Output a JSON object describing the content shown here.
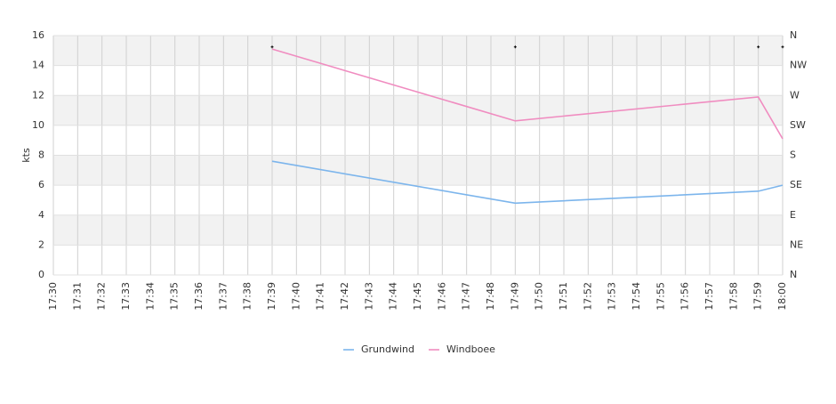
{
  "chart_data": {
    "type": "line",
    "y_label": "kts",
    "categories": [
      "17:30",
      "17:31",
      "17:32",
      "17:33",
      "17:34",
      "17:35",
      "17:36",
      "17:37",
      "17:38",
      "17:39",
      "17:40",
      "17:41",
      "17:42",
      "17:43",
      "17:44",
      "17:45",
      "17:46",
      "17:47",
      "17:48",
      "17:49",
      "17:50",
      "17:51",
      "17:52",
      "17:53",
      "17:54",
      "17:55",
      "17:56",
      "17:57",
      "17:58",
      "17:59",
      "18:00"
    ],
    "series": [
      {
        "name": "Grundwind",
        "color": "#7cb5ec",
        "x": [
          "17:39",
          "17:49",
          "17:59",
          "18:00"
        ],
        "values": [
          7.6,
          4.8,
          5.6,
          6.0
        ]
      },
      {
        "name": "Windboee",
        "color": "#f08cc0",
        "x": [
          "17:39",
          "17:49",
          "17:59",
          "18:00"
        ],
        "values": [
          15.1,
          10.3,
          11.9,
          9.1
        ]
      },
      {
        "color": "#000000",
        "axis": "y2",
        "x": [
          "17:39",
          "17:49",
          "17:59",
          "18:00"
        ],
        "values": [
          343,
          343,
          343,
          343
        ]
      }
    ],
    "ylim": [
      0,
      16
    ],
    "yticks": [
      0,
      2,
      4,
      6,
      8,
      10,
      12,
      14,
      16
    ],
    "y2lim": [
      0,
      360
    ],
    "y2ticks": [
      {
        "value": 0,
        "label": "N"
      },
      {
        "value": 45,
        "label": "NE"
      },
      {
        "value": 90,
        "label": "E"
      },
      {
        "value": 135,
        "label": "SE"
      },
      {
        "value": 180,
        "label": "S"
      },
      {
        "value": 225,
        "label": "SW"
      },
      {
        "value": 270,
        "label": "W"
      },
      {
        "value": 315,
        "label": "NW"
      },
      {
        "value": 360,
        "label": "N"
      }
    ],
    "grid": true,
    "band_color": "#f2f2f2",
    "legend": "bottom"
  }
}
